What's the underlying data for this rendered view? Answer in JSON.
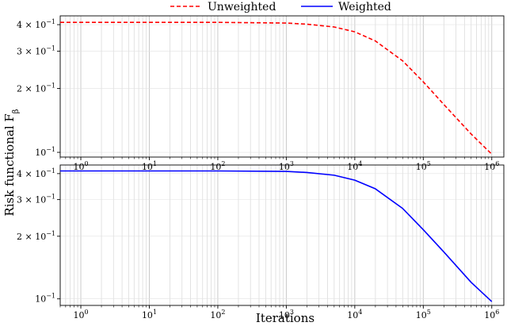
{
  "chart_data": {
    "shared_xlabel": "Iterations",
    "shared_ylabel": "Risk functional F_β",
    "ylabel_base": "Risk functional F",
    "ylabel_sub": "β",
    "x_scale": "log",
    "y_scale": "log",
    "xlim": [
      0.5,
      1500000
    ],
    "x_ticks": [
      1,
      10,
      100,
      1000,
      10000,
      100000,
      1000000
    ],
    "x_tick_base": "10",
    "x_tick_exponents": [
      "0",
      "1",
      "2",
      "3",
      "4",
      "5",
      "6"
    ],
    "grid": true,
    "legend": {
      "placement": "top-center",
      "entries": [
        {
          "label": "Unweighted",
          "color": "#ff0000",
          "style": "dashed"
        },
        {
          "label": "Weighted",
          "color": "#0000ff",
          "style": "solid"
        }
      ]
    },
    "panels": [
      {
        "type": "line",
        "ylim": [
          0.095,
          0.44
        ],
        "y_ticks": [
          {
            "value": 0.4,
            "label": "4 × 10",
            "exp": "−1"
          },
          {
            "value": 0.3,
            "label": "3 × 10",
            "exp": "−1"
          },
          {
            "value": 0.2,
            "label": "2 × 10",
            "exp": "−1"
          },
          {
            "value": 0.1,
            "label": "10",
            "exp": "−1"
          }
        ],
        "series": [
          {
            "name": "Unweighted",
            "color": "#ff0000",
            "style": "dashed",
            "x": [
              0.5,
              1,
              10,
              100,
              1000,
              2000,
              5000,
              10000,
              20000,
              50000,
              100000,
              200000,
              500000,
              1000000
            ],
            "y": [
              0.41,
              0.41,
              0.41,
              0.41,
              0.407,
              0.402,
              0.39,
              0.37,
              0.335,
              0.27,
              0.215,
              0.168,
              0.122,
              0.098
            ]
          }
        ]
      },
      {
        "type": "line",
        "ylim": [
          0.093,
          0.44
        ],
        "y_ticks": [
          {
            "value": 0.4,
            "label": "4 × 10",
            "exp": "−1"
          },
          {
            "value": 0.3,
            "label": "3 × 10",
            "exp": "−1"
          },
          {
            "value": 0.2,
            "label": "2 × 10",
            "exp": "−1"
          },
          {
            "value": 0.1,
            "label": "10",
            "exp": "−1"
          }
        ],
        "series": [
          {
            "name": "Weighted",
            "color": "#0000ff",
            "style": "solid",
            "x": [
              0.5,
              1,
              10,
              100,
              1000,
              2000,
              5000,
              10000,
              20000,
              50000,
              100000,
              200000,
              500000,
              1000000
            ],
            "y": [
              0.412,
              0.412,
              0.412,
              0.412,
              0.41,
              0.405,
              0.393,
              0.372,
              0.338,
              0.272,
              0.215,
              0.168,
              0.12,
              0.097
            ]
          }
        ]
      }
    ]
  }
}
